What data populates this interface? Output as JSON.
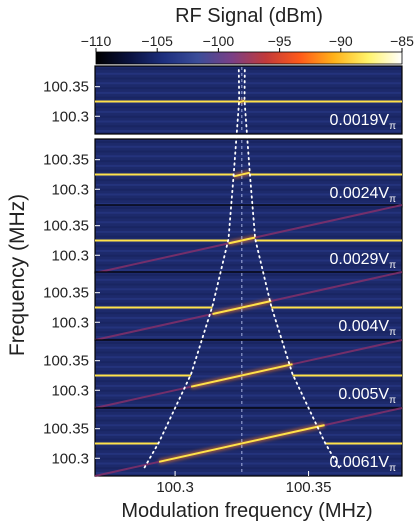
{
  "chart_data": {
    "type": "heatmap",
    "colorbar": {
      "title": "RF Signal (dBm)",
      "ticks": [
        -110,
        -105,
        -100,
        -95,
        -90,
        -85
      ],
      "range": [
        -110,
        -85
      ],
      "colormap": [
        "#000000",
        "#0a1240",
        "#1d2f7e",
        "#3b4d99",
        "#7a3f86",
        "#c23a3a",
        "#ff5a1a",
        "#ffb21a",
        "#fff36a",
        "#ffffff"
      ]
    },
    "xlabel": "Modulation frequency (MHz)",
    "ylabel": "Frequency (MHz)",
    "xlim": [
      100.27,
      100.385
    ],
    "ylim": [
      100.27,
      100.385
    ],
    "x_ticks": [
      "100.3",
      "100.35"
    ],
    "x_tick_values": [
      100.3,
      100.35
    ],
    "y_ticks": [
      "100.35",
      "100.3"
    ],
    "y_tick_values": [
      100.35,
      100.3
    ],
    "panels": [
      {
        "label": "0.0019V",
        "subscript": "π",
        "center": 100.325,
        "half_gap": 0.001,
        "line_y": 100.325
      },
      {
        "label": "0.0024V",
        "subscript": "π",
        "center": 100.325,
        "half_gap": 0.003,
        "line_y": 100.325
      },
      {
        "label": "0.0029V",
        "subscript": "π",
        "center": 100.325,
        "half_gap": 0.005,
        "line_y": 100.325
      },
      {
        "label": "0.004V",
        "subscript": "π",
        "center": 100.325,
        "half_gap": 0.011,
        "line_y": 100.325
      },
      {
        "label": "0.005V",
        "subscript": "π",
        "center": 100.325,
        "half_gap": 0.019,
        "line_y": 100.325
      },
      {
        "label": "0.0061V",
        "subscript": "π",
        "center": 100.325,
        "half_gap": 0.031,
        "line_y": 100.325
      }
    ],
    "grid": false,
    "legend": "none"
  }
}
